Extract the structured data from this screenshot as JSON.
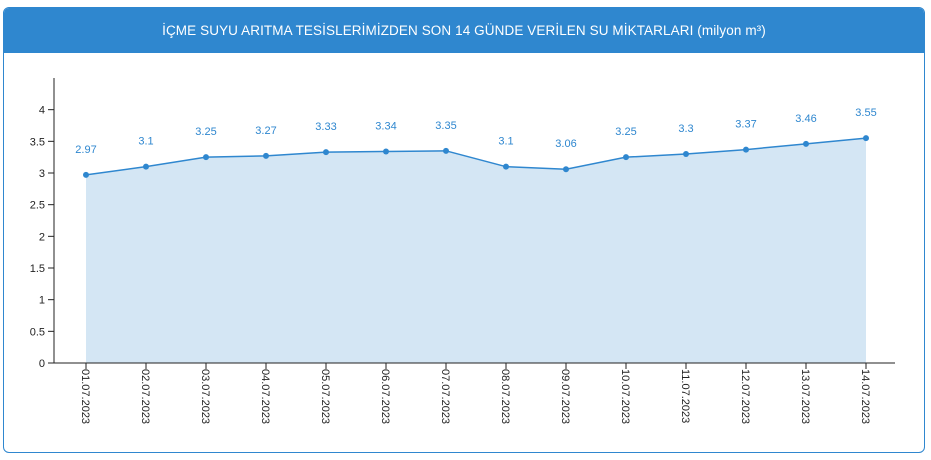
{
  "panel": {
    "title": "İÇME SUYU ARITMA TESİSLERİMİZDEN SON 14 GÜNDE VERİLEN SU MİKTARLARI (milyon m³)"
  },
  "colors": {
    "accent": "#2f87cf",
    "area_fill": "#d4e6f4",
    "axis": "#222222"
  },
  "chart_data": {
    "type": "area",
    "title": "İÇME SUYU ARITMA TESİSLERİMİZDEN SON 14 GÜNDE VERİLEN SU MİKTARLARI (milyon m³)",
    "xlabel": "",
    "ylabel": "",
    "categories": [
      "01.07.2023",
      "02.07.2023",
      "03.07.2023",
      "04.07.2023",
      "05.07.2023",
      "06.07.2023",
      "07.07.2023",
      "08.07.2023",
      "09.07.2023",
      "10.07.2023",
      "11.07.2023",
      "12.07.2023",
      "13.07.2023",
      "14.07.2023"
    ],
    "values": [
      2.97,
      3.1,
      3.25,
      3.27,
      3.33,
      3.34,
      3.35,
      3.1,
      3.06,
      3.25,
      3.3,
      3.37,
      3.46,
      3.55
    ],
    "value_labels": [
      "2.97",
      "3.1",
      "3.25",
      "3.27",
      "3.33",
      "3.34",
      "3.35",
      "3.1",
      "3.06",
      "3.25",
      "3.3",
      "3.37",
      "3.46",
      "3.55"
    ],
    "yticks": [
      "0",
      "0.5",
      "1",
      "1.5",
      "2",
      "2.5",
      "3",
      "3.5",
      "4"
    ],
    "ylim": [
      0,
      4.5
    ],
    "grid": false,
    "legend": "none"
  }
}
